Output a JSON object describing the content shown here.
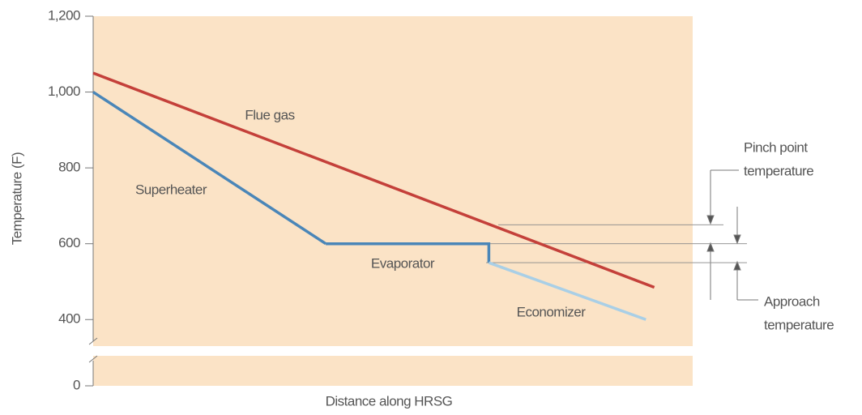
{
  "chart_data": {
    "type": "line",
    "y_label": "Temperature (F)",
    "x_label": "Distance along HRSG",
    "xlim": [
      0,
      100
    ],
    "ylim": [
      0,
      1200
    ],
    "ybreak": [
      80,
      330
    ],
    "yticks": [
      0,
      400,
      600,
      800,
      {
        "value": 1000,
        "label": "1,000"
      },
      {
        "value": 1200,
        "label": "1,200"
      }
    ],
    "background": "#fbe3c6",
    "series": [
      {
        "name": "Flue gas",
        "color": "#c4403a",
        "x": [
          0,
          93.6
        ],
        "values": [
          1050,
          485
        ]
      },
      {
        "name": "Superheater",
        "color": "#4a86b8",
        "x": [
          0,
          38.8
        ],
        "values": [
          1000,
          600
        ]
      },
      {
        "name": "Evaporator",
        "color": "#4a86b8",
        "x": [
          38.8,
          66,
          66
        ],
        "values": [
          600,
          600,
          550
        ]
      },
      {
        "name": "Economizer",
        "color": "#a9cfe6",
        "x": [
          66,
          92.2
        ],
        "values": [
          550,
          400
        ]
      }
    ],
    "reference_lines": [
      650,
      600,
      550
    ],
    "annotations": [
      {
        "lines": [
          "Pinch point",
          "temperature"
        ]
      },
      {
        "lines": [
          "Approach",
          "temperature"
        ]
      }
    ]
  }
}
